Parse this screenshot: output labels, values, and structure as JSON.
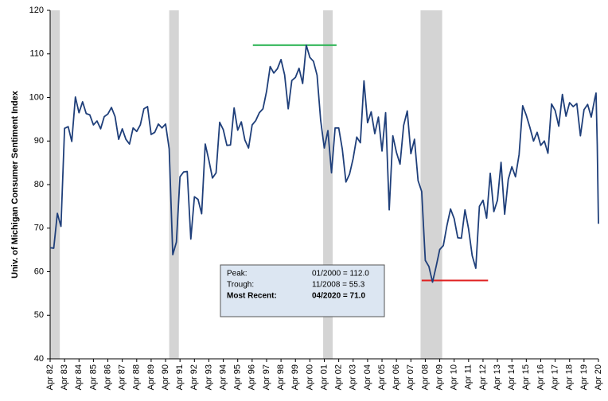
{
  "chart_data": {
    "type": "line",
    "y_label": "Univ. of Michigan Consumer  Sentiment Index",
    "color": "#1f3f7a",
    "x": [
      1982.25,
      1982.5,
      1982.75,
      1983,
      1983.25,
      1983.5,
      1983.75,
      1984,
      1984.25,
      1984.5,
      1984.75,
      1985,
      1985.25,
      1985.5,
      1985.75,
      1986,
      1986.25,
      1986.5,
      1986.75,
      1987,
      1987.25,
      1987.5,
      1987.75,
      1988,
      1988.25,
      1988.5,
      1988.75,
      1989,
      1989.25,
      1989.5,
      1989.75,
      1990,
      1990.25,
      1990.5,
      1990.75,
      1991,
      1991.25,
      1991.5,
      1991.75,
      1992,
      1992.25,
      1992.5,
      1992.75,
      1993,
      1993.25,
      1993.5,
      1993.75,
      1994,
      1994.25,
      1994.5,
      1994.75,
      1995,
      1995.25,
      1995.5,
      1995.75,
      1996,
      1996.25,
      1996.5,
      1996.75,
      1997,
      1997.25,
      1997.5,
      1997.75,
      1998,
      1998.25,
      1998.5,
      1998.75,
      1999,
      1999.25,
      1999.5,
      1999.75,
      2000,
      2000.25,
      2000.5,
      2000.75,
      2001,
      2001.25,
      2001.5,
      2001.75,
      2002,
      2002.25,
      2002.5,
      2002.75,
      2003,
      2003.25,
      2003.5,
      2003.75,
      2004,
      2004.25,
      2004.5,
      2004.75,
      2005,
      2005.25,
      2005.5,
      2005.75,
      2006,
      2006.25,
      2006.5,
      2006.75,
      2007,
      2007.25,
      2007.5,
      2007.75,
      2008,
      2008.25,
      2008.5,
      2008.75,
      2009,
      2009.25,
      2009.5,
      2009.75,
      2010,
      2010.25,
      2010.5,
      2010.75,
      2011,
      2011.25,
      2011.5,
      2011.75,
      2012,
      2012.25,
      2012.5,
      2012.75,
      2013,
      2013.25,
      2013.5,
      2013.75,
      2014,
      2014.25,
      2014.5,
      2014.75,
      2015,
      2015.25,
      2015.5,
      2015.75,
      2016,
      2016.25,
      2016.5,
      2016.75,
      2017,
      2017.25,
      2017.5,
      2017.75,
      2018,
      2018.25,
      2018.5,
      2018.75,
      2019,
      2019.25,
      2019.5,
      2019.75,
      2020,
      2020.083,
      2020.167,
      2020.25
    ],
    "values": [
      65.5,
      65.4,
      73.4,
      70.4,
      92.9,
      93.3,
      89.9,
      100.1,
      96.5,
      99.0,
      96.3,
      96.0,
      93.7,
      94.6,
      92.8,
      95.6,
      96.2,
      97.7,
      95.6,
      90.4,
      92.8,
      90.4,
      89.3,
      93.0,
      92.2,
      93.7,
      97.4,
      97.9,
      91.5,
      92.0,
      93.9,
      93.0,
      93.9,
      88.2,
      63.9,
      66.8,
      81.8,
      82.9,
      83.0,
      67.5,
      77.2,
      76.6,
      73.3,
      89.3,
      85.6,
      81.5,
      82.7,
      94.3,
      92.6,
      89.0,
      89.1,
      97.6,
      92.5,
      94.4,
      90.2,
      88.4,
      93.7,
      94.7,
      96.5,
      97.4,
      101.4,
      107.1,
      105.6,
      106.6,
      108.7,
      105.2,
      97.4,
      103.9,
      104.6,
      106.7,
      103.2,
      112.0,
      109.2,
      108.3,
      105.1,
      94.7,
      88.4,
      92.4,
      82.7,
      93.0,
      93.0,
      88.1,
      80.6,
      82.4,
      86.0,
      90.9,
      89.6,
      103.8,
      94.2,
      96.7,
      91.7,
      95.5,
      87.7,
      96.5,
      74.2,
      91.2,
      87.4,
      84.7,
      93.6,
      96.9,
      87.1,
      90.4,
      80.9,
      78.4,
      62.6,
      61.2,
      57.6,
      61.2,
      65.1,
      66.0,
      70.6,
      74.4,
      72.2,
      67.8,
      67.7,
      74.2,
      69.8,
      63.7,
      60.8,
      75.0,
      76.4,
      72.3,
      82.6,
      73.8,
      76.4,
      85.1,
      73.2,
      81.2,
      84.1,
      81.8,
      86.9,
      98.1,
      95.9,
      93.1,
      90.0,
      92.0,
      89.0,
      90.0,
      87.2,
      98.5,
      97.0,
      93.4,
      100.7,
      95.7,
      98.8,
      97.9,
      98.6,
      91.2,
      97.2,
      98.4,
      95.5,
      99.8,
      101.0,
      89.1,
      71.0
    ],
    "recessions": [
      [
        1982.25,
        1982.92
      ],
      [
        1990.5,
        1991.17
      ],
      [
        2001.17,
        2001.83
      ],
      [
        2007.92,
        2009.42
      ]
    ],
    "recession_color": "#d4d4d4",
    "peak_line": {
      "value": 112,
      "x": [
        1996.3,
        2002.1
      ],
      "color": "#22b14c"
    },
    "trough_line": {
      "value": 58,
      "x": [
        2008.0,
        2012.6
      ],
      "color": "#e02020"
    },
    "xlim": [
      1982.25,
      2020.25
    ],
    "xticks": [
      {
        "value": 1982.25,
        "label": "Apr 82"
      },
      {
        "value": 1983.25,
        "label": "Apr 83"
      },
      {
        "value": 1984.25,
        "label": "Apr 84"
      },
      {
        "value": 1985.25,
        "label": "Apr 85"
      },
      {
        "value": 1986.25,
        "label": "Apr 86"
      },
      {
        "value": 1987.25,
        "label": "Apr 87"
      },
      {
        "value": 1988.25,
        "label": "Apr 88"
      },
      {
        "value": 1989.25,
        "label": "Apr 89"
      },
      {
        "value": 1990.25,
        "label": "Apr 90"
      },
      {
        "value": 1991.25,
        "label": "Apr 91"
      },
      {
        "value": 1992.25,
        "label": "Apr 92"
      },
      {
        "value": 1993.25,
        "label": "Apr 93"
      },
      {
        "value": 1994.25,
        "label": "Apr 94"
      },
      {
        "value": 1995.25,
        "label": "Apr 95"
      },
      {
        "value": 1996.25,
        "label": "Apr 96"
      },
      {
        "value": 1997.25,
        "label": "Apr 97"
      },
      {
        "value": 1998.25,
        "label": "Apr 98"
      },
      {
        "value": 1999.25,
        "label": "Apr 99"
      },
      {
        "value": 2000.25,
        "label": "Apr 00"
      },
      {
        "value": 2001.25,
        "label": "Apr 01"
      },
      {
        "value": 2002.25,
        "label": "Apr 02"
      },
      {
        "value": 2003.25,
        "label": "Apr 03"
      },
      {
        "value": 2004.25,
        "label": "Apr 04"
      },
      {
        "value": 2005.25,
        "label": "Apr 05"
      },
      {
        "value": 2006.25,
        "label": "Apr 06"
      },
      {
        "value": 2007.25,
        "label": "Apr 07"
      },
      {
        "value": 2008.25,
        "label": "Apr 08"
      },
      {
        "value": 2009.25,
        "label": "Apr 09"
      },
      {
        "value": 2010.25,
        "label": "Apr 10"
      },
      {
        "value": 2011.25,
        "label": "Apr 11"
      },
      {
        "value": 2012.25,
        "label": "Apr 12"
      },
      {
        "value": 2013.25,
        "label": "Apr 13"
      },
      {
        "value": 2014.25,
        "label": "Apr 14"
      },
      {
        "value": 2015.25,
        "label": "Apr 15"
      },
      {
        "value": 2016.25,
        "label": "Apr 16"
      },
      {
        "value": 2017.25,
        "label": "Apr 17"
      },
      {
        "value": 2018.25,
        "label": "Apr 18"
      },
      {
        "value": 2019.25,
        "label": "Apr 19"
      },
      {
        "value": 2020.25,
        "label": "Apr 20"
      }
    ],
    "ylim": [
      40,
      120
    ],
    "yticks": [
      40,
      50,
      60,
      70,
      80,
      90,
      100,
      110,
      120
    ],
    "annotation": {
      "rows": [
        [
          "Peak:",
          "01/2000  = 112.0"
        ],
        [
          "Trough:",
          "11/2008  = 55.3"
        ],
        [
          "Most Recent:",
          "04/2020  = 71.0"
        ]
      ]
    }
  }
}
